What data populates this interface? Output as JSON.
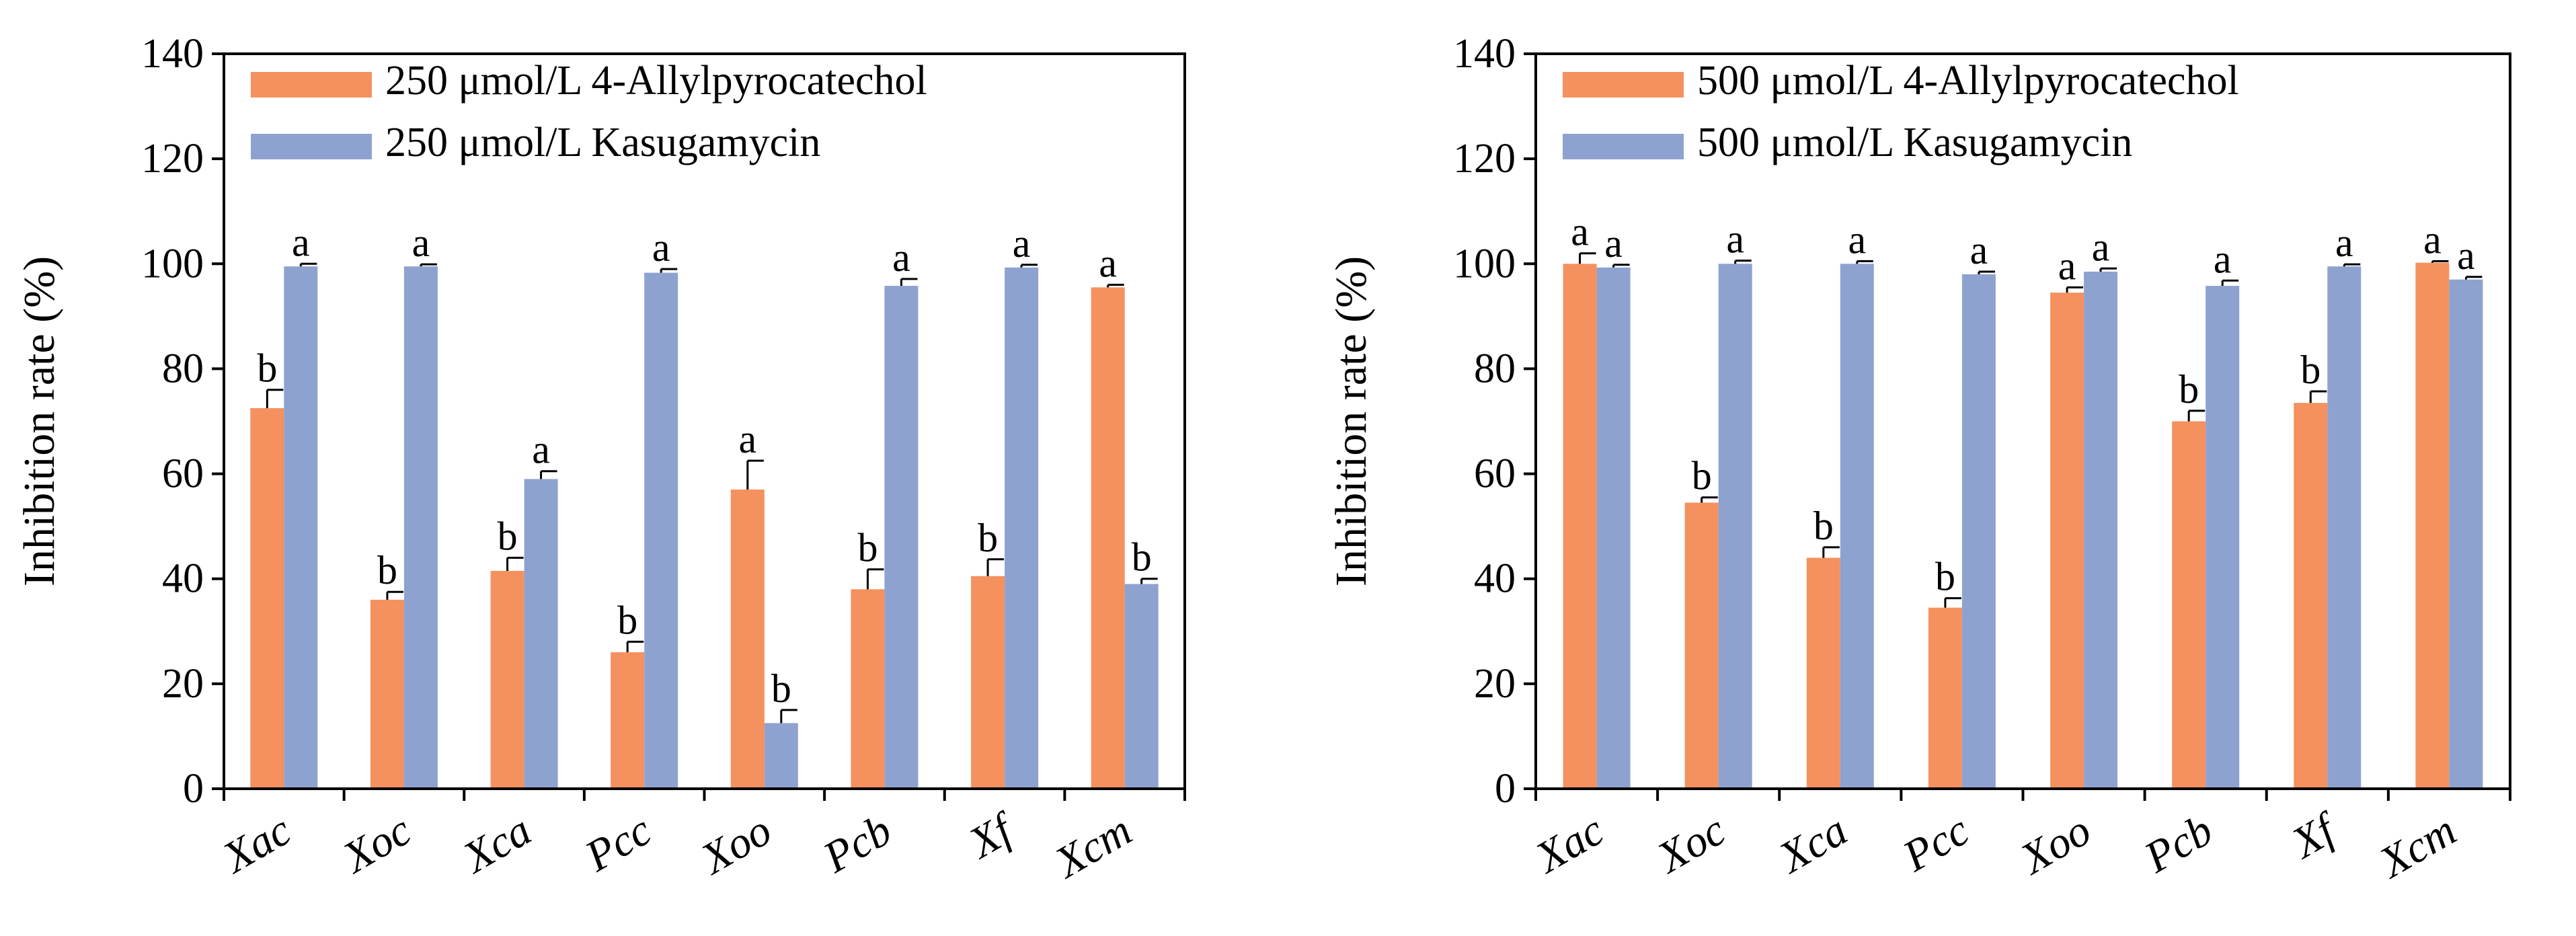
{
  "chart_data": [
    {
      "type": "bar",
      "categories": [
        "Xac",
        "Xoc",
        "Xca",
        "Pcc",
        "Xoo",
        "Pcb",
        "Xf",
        "Xcm"
      ],
      "ylabel": "Inhibition rate (%)",
      "xlabel": "",
      "ylim": [
        0,
        140
      ],
      "yticks": [
        0,
        20,
        40,
        60,
        80,
        100,
        120,
        140
      ],
      "legend_position": "top-left",
      "series": [
        {
          "name": "250 μmol/L 4-Allylpyrocatechol",
          "color": "#F4915E",
          "values": [
            72.5,
            36,
            41.5,
            26,
            57,
            38,
            40.5,
            95.5
          ],
          "errors": [
            3.5,
            1.5,
            2.5,
            2,
            5.5,
            3.8,
            3.2,
            0.5
          ],
          "letters": [
            "b",
            "b",
            "b",
            "b",
            "a",
            "b",
            "b",
            "a"
          ]
        },
        {
          "name": "250 μmol/L Kasugamycin",
          "color": "#8EA2D0",
          "values": [
            99.5,
            99.5,
            59,
            98.3,
            12.5,
            95.8,
            99.3,
            39
          ],
          "errors": [
            0.5,
            0.4,
            1.5,
            0.7,
            2.5,
            1.3,
            0.5,
            1
          ],
          "letters": [
            "a",
            "a",
            "a",
            "a",
            "b",
            "a",
            "a",
            "b"
          ]
        }
      ]
    },
    {
      "type": "bar",
      "categories": [
        "Xac",
        "Xoc",
        "Xca",
        "Pcc",
        "Xoo",
        "Pcb",
        "Xf",
        "Xcm"
      ],
      "ylabel": "Inhibition rate (%)",
      "xlabel": "",
      "ylim": [
        0,
        140
      ],
      "yticks": [
        0,
        20,
        40,
        60,
        80,
        100,
        120,
        140
      ],
      "legend_position": "top-left",
      "series": [
        {
          "name": "500 μmol/L 4-Allylpyrocatechol",
          "color": "#F4915E",
          "values": [
            100,
            54.5,
            44,
            34.5,
            94.5,
            70,
            73.5,
            100.2
          ],
          "errors": [
            2,
            1,
            2,
            1.8,
            1,
            2,
            2.2,
            0.3
          ],
          "letters": [
            "a",
            "b",
            "b",
            "b",
            "a",
            "b",
            "b",
            "a"
          ]
        },
        {
          "name": "500 μmol/L Kasugamycin",
          "color": "#8EA2D0",
          "values": [
            99.3,
            100,
            100,
            98,
            98.5,
            95.8,
            99.5,
            97
          ],
          "errors": [
            0.5,
            0.6,
            0.5,
            0.5,
            0.6,
            1,
            0.4,
            0.5
          ],
          "letters": [
            "a",
            "a",
            "a",
            "a",
            "a",
            "a",
            "a",
            "a"
          ]
        }
      ]
    }
  ]
}
